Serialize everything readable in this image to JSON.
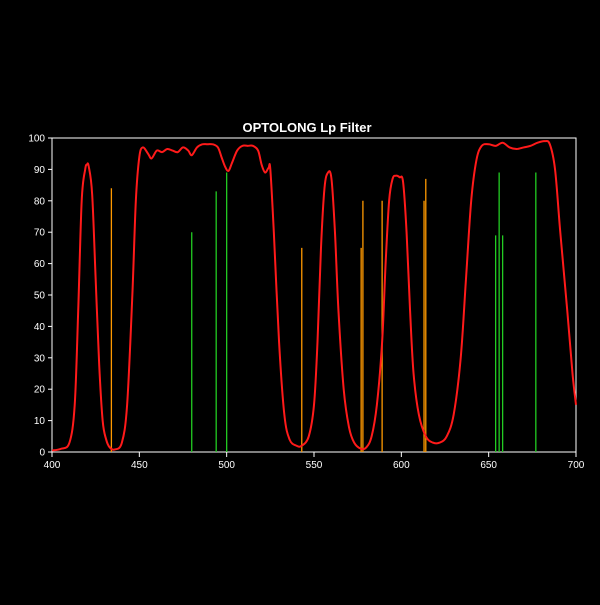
{
  "chart_data": {
    "type": "line",
    "title": "OPTOLONG Lp Filter",
    "xlabel": "",
    "ylabel": "",
    "xlim": [
      400,
      700
    ],
    "ylim": [
      0,
      100
    ],
    "x_ticks": [
      400,
      450,
      500,
      550,
      600,
      650,
      700
    ],
    "y_ticks": [
      0,
      10,
      20,
      30,
      40,
      50,
      60,
      70,
      80,
      90,
      100
    ],
    "grid": false,
    "legend": "none",
    "colors": {
      "background": "#000000",
      "plot_background": "#000000",
      "axis": "#ffffff",
      "transmission": "#ff1a1a",
      "orange_lines": "#ff9900",
      "green_lines": "#22cc22"
    },
    "series": [
      {
        "style": "curve",
        "color": "#ff1a1a",
        "points": [
          [
            400,
            0.5
          ],
          [
            405,
            1
          ],
          [
            410,
            3
          ],
          [
            413,
            15
          ],
          [
            415,
            45
          ],
          [
            417,
            80
          ],
          [
            419,
            90
          ],
          [
            420,
            91.5
          ],
          [
            421,
            91
          ],
          [
            423,
            82
          ],
          [
            425,
            55
          ],
          [
            427,
            28
          ],
          [
            429,
            10
          ],
          [
            431,
            4
          ],
          [
            433,
            1.5
          ],
          [
            436,
            0.8
          ],
          [
            440,
            3
          ],
          [
            443,
            15
          ],
          [
            446,
            50
          ],
          [
            448,
            80
          ],
          [
            450,
            94
          ],
          [
            452,
            97
          ],
          [
            455,
            95
          ],
          [
            457,
            93.5
          ],
          [
            460,
            96
          ],
          [
            463,
            95.5
          ],
          [
            466,
            96.5
          ],
          [
            469,
            96
          ],
          [
            472,
            95.5
          ],
          [
            475,
            97
          ],
          [
            478,
            96
          ],
          [
            480,
            94.5
          ],
          [
            483,
            97
          ],
          [
            486,
            98
          ],
          [
            489,
            98
          ],
          [
            492,
            98
          ],
          [
            495,
            97
          ],
          [
            497,
            94
          ],
          [
            499,
            91
          ],
          [
            501,
            89.5
          ],
          [
            503,
            92
          ],
          [
            506,
            96
          ],
          [
            509,
            97.5
          ],
          [
            512,
            97.5
          ],
          [
            515,
            97.5
          ],
          [
            518,
            96
          ],
          [
            520,
            91.5
          ],
          [
            522,
            89
          ],
          [
            524,
            90.5
          ],
          [
            525,
            90
          ],
          [
            527,
            70
          ],
          [
            530,
            35
          ],
          [
            533,
            12
          ],
          [
            536,
            4
          ],
          [
            540,
            2
          ],
          [
            543,
            2
          ],
          [
            547,
            5
          ],
          [
            550,
            15
          ],
          [
            552,
            35
          ],
          [
            554,
            65
          ],
          [
            556,
            84
          ],
          [
            558,
            89
          ],
          [
            560,
            87
          ],
          [
            562,
            70
          ],
          [
            564,
            45
          ],
          [
            567,
            20
          ],
          [
            570,
            8
          ],
          [
            573,
            3
          ],
          [
            577,
            1
          ],
          [
            580,
            1.5
          ],
          [
            583,
            5
          ],
          [
            586,
            15
          ],
          [
            589,
            35
          ],
          [
            591,
            60
          ],
          [
            593,
            80
          ],
          [
            595,
            87
          ],
          [
            597,
            88
          ],
          [
            599,
            87.5
          ],
          [
            601,
            86
          ],
          [
            603,
            70
          ],
          [
            605,
            45
          ],
          [
            607,
            25
          ],
          [
            610,
            12
          ],
          [
            614,
            5
          ],
          [
            618,
            3
          ],
          [
            622,
            3
          ],
          [
            626,
            5
          ],
          [
            630,
            12
          ],
          [
            634,
            30
          ],
          [
            637,
            55
          ],
          [
            640,
            80
          ],
          [
            643,
            93
          ],
          [
            646,
            97.5
          ],
          [
            650,
            98
          ],
          [
            654,
            97.5
          ],
          [
            658,
            98.5
          ],
          [
            662,
            97
          ],
          [
            666,
            96.5
          ],
          [
            670,
            97
          ],
          [
            674,
            97.5
          ],
          [
            678,
            98.5
          ],
          [
            682,
            99
          ],
          [
            685,
            98
          ],
          [
            688,
            90
          ],
          [
            691,
            70
          ],
          [
            695,
            45
          ],
          [
            698,
            25
          ],
          [
            700,
            15
          ]
        ]
      }
    ],
    "spectral_lines": [
      {
        "x": 434,
        "height": 84,
        "color": "#ff9900"
      },
      {
        "x": 480,
        "height": 70,
        "color": "#22cc22"
      },
      {
        "x": 494,
        "height": 83,
        "color": "#22cc22"
      },
      {
        "x": 500,
        "height": 89,
        "color": "#22cc22"
      },
      {
        "x": 543,
        "height": 65,
        "color": "#ff9900"
      },
      {
        "x": 577,
        "height": 65,
        "color": "#ff9900"
      },
      {
        "x": 578,
        "height": 80,
        "color": "#ff9900"
      },
      {
        "x": 589,
        "height": 80,
        "color": "#ff9900"
      },
      {
        "x": 613,
        "height": 80,
        "color": "#ff9900"
      },
      {
        "x": 614,
        "height": 87,
        "color": "#ff9900"
      },
      {
        "x": 654,
        "height": 69,
        "color": "#22cc22"
      },
      {
        "x": 656,
        "height": 89,
        "color": "#22cc22"
      },
      {
        "x": 658,
        "height": 69,
        "color": "#22cc22"
      },
      {
        "x": 677,
        "height": 89,
        "color": "#22cc22"
      }
    ]
  }
}
